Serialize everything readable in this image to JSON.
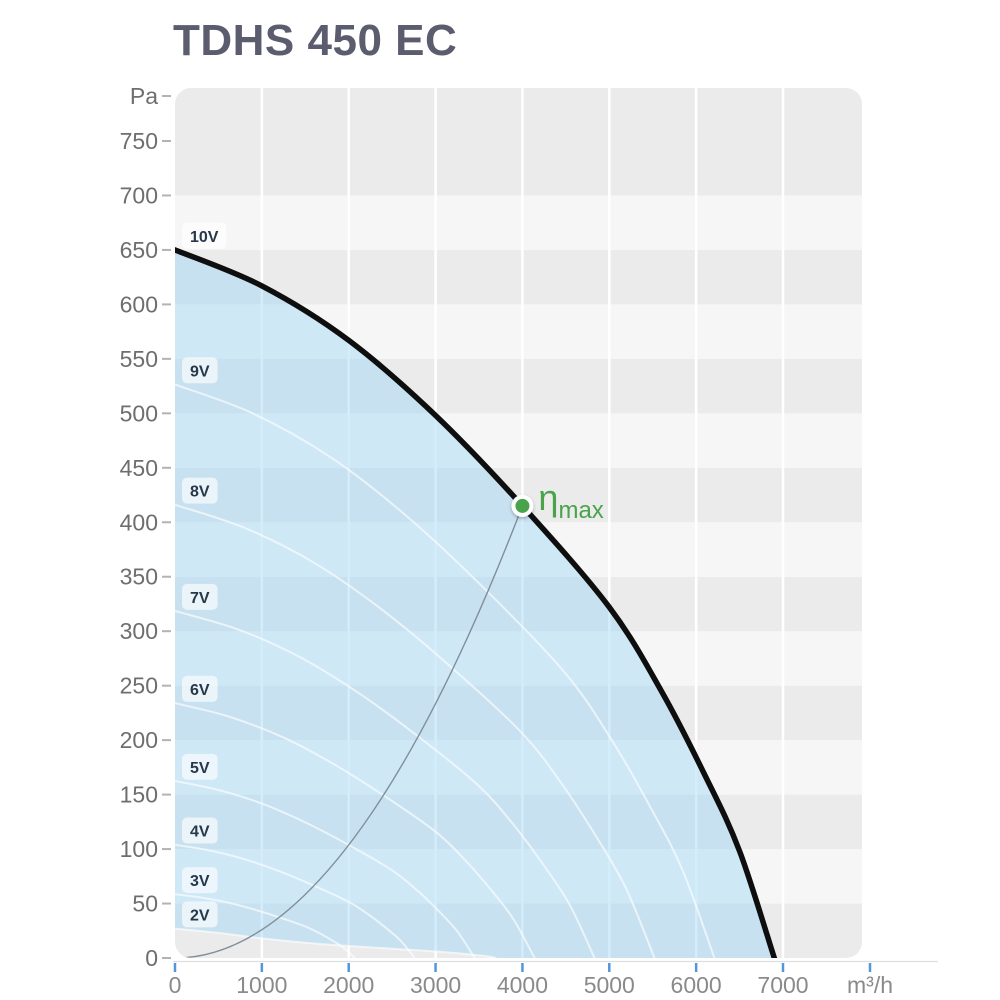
{
  "header": {
    "title": "TDHS 450 EC"
  },
  "chart_data": {
    "type": "line",
    "title": "TDHS 450 EC",
    "xlabel": "m³/h",
    "ylabel": "Pa",
    "xlim": [
      0,
      7900
    ],
    "ylim": [
      0,
      800
    ],
    "x_ticks": [
      0,
      1000,
      2000,
      3000,
      4000,
      5000,
      6000,
      7000
    ],
    "y_ticks": [
      0,
      50,
      100,
      150,
      200,
      250,
      300,
      350,
      400,
      450,
      500,
      550,
      600,
      650,
      700,
      750
    ],
    "grid": {
      "horizontal_bands_every_pa": 50,
      "vertical_white_lines_every_m3h": 1000
    },
    "legend_position": "labels-inline-left",
    "fan_law_note": "derived curves scale: flow x (V/10), pressure x (V/10)^2 of the 10V curve",
    "series": [
      {
        "name": "10V",
        "kind": "max",
        "points": [
          [
            0,
            650
          ],
          [
            1000,
            617
          ],
          [
            2000,
            567
          ],
          [
            3000,
            498
          ],
          [
            4000,
            415
          ],
          [
            5000,
            322
          ],
          [
            5600,
            245
          ],
          [
            6100,
            168
          ],
          [
            6500,
            98
          ],
          [
            6900,
            0
          ]
        ]
      },
      {
        "name": "9V",
        "kind": "derived",
        "scale": 0.9
      },
      {
        "name": "8V",
        "kind": "derived",
        "scale": 0.8
      },
      {
        "name": "7V",
        "kind": "derived",
        "scale": 0.7
      },
      {
        "name": "6V",
        "kind": "derived",
        "scale": 0.6
      },
      {
        "name": "5V",
        "kind": "derived",
        "scale": 0.5
      },
      {
        "name": "4V",
        "kind": "derived",
        "scale": 0.4
      },
      {
        "name": "3V",
        "kind": "derived",
        "scale": 0.3
      },
      {
        "name": "2V",
        "kind": "min",
        "points": [
          [
            0,
            27
          ],
          [
            500,
            23
          ],
          [
            1000,
            18
          ],
          [
            1500,
            14
          ],
          [
            2000,
            11
          ],
          [
            2500,
            8.5
          ],
          [
            3000,
            6
          ],
          [
            3300,
            4
          ],
          [
            3550,
            2
          ],
          [
            3700,
            0
          ]
        ]
      }
    ],
    "efficiency_marker": {
      "label": "η",
      "subscript": "max",
      "flow_m3h": 4000,
      "pressure_pa": 415
    }
  },
  "colors": {
    "title": "#5b5c6d",
    "band_dark": "#ebebec",
    "band_light": "#f6f6f7",
    "gridline": "#ffffff",
    "blue_fill": "rgba(150,213,246,0.42)",
    "max_curve": "#0e0e0e",
    "derived_curve": "rgba(255,255,255,0.62)",
    "system_curve": "#7f8f9a",
    "efficiency_green": "#4aa34b",
    "marker_ring": "#ffffff",
    "x_tick": "#5596d8",
    "y_tick": "#b3b3b3",
    "x_tick_label": "#8a8a8a",
    "y_tick_label": "#6e6e6e",
    "axis_line": "#dedede",
    "voltage_label_text": "#26384a",
    "voltage_label_bg": "rgba(255,255,255,0.62)"
  }
}
